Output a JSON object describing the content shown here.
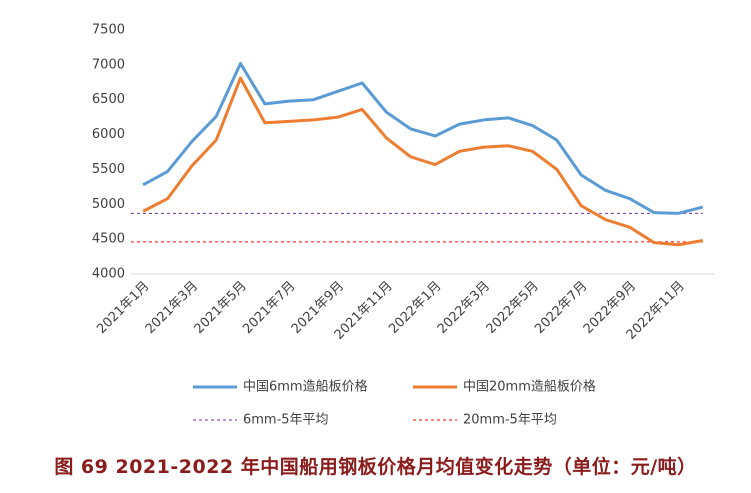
{
  "chart_data": {
    "type": "line",
    "categories": [
      "2021年1月",
      null,
      "2021年3月",
      null,
      "2021年5月",
      null,
      "2021年7月",
      null,
      "2021年9月",
      null,
      "2021年11月",
      null,
      "2022年1月",
      null,
      "2022年3月",
      null,
      "2022年5月",
      null,
      "2022年7月",
      null,
      "2022年9月",
      null,
      "2022年11月",
      null
    ],
    "series": [
      {
        "name": "中国6mm造船板价格",
        "color": "#5b9bd5",
        "values": [
          5280,
          5470,
          5900,
          6260,
          7020,
          6440,
          6480,
          6500,
          6620,
          6740,
          6320,
          6080,
          5980,
          6150,
          6210,
          6240,
          6130,
          5920,
          5420,
          5200,
          5080,
          4880,
          4870,
          4960
        ]
      },
      {
        "name": "中国20mm造船板价格",
        "color": "#ed7d31",
        "values": [
          4900,
          5080,
          5550,
          5920,
          6810,
          6170,
          6190,
          6210,
          6250,
          6360,
          5950,
          5680,
          5570,
          5760,
          5820,
          5840,
          5760,
          5500,
          4980,
          4780,
          4670,
          4450,
          4420,
          4480
        ]
      }
    ],
    "reference_lines": [
      {
        "name": "6mm-5年平均",
        "color": "#7030a0",
        "value": 4870
      },
      {
        "name": "20mm-5年平均",
        "color": "#ff0000",
        "value": 4460
      }
    ],
    "ylim": [
      4000,
      7500
    ],
    "yticks": [
      4000,
      4500,
      5000,
      5500,
      6000,
      6500,
      7000,
      7500
    ],
    "grid": false
  },
  "caption": "图 69   2021-2022 年中国船用钢板价格月均值变化走势（单位：元/吨）"
}
